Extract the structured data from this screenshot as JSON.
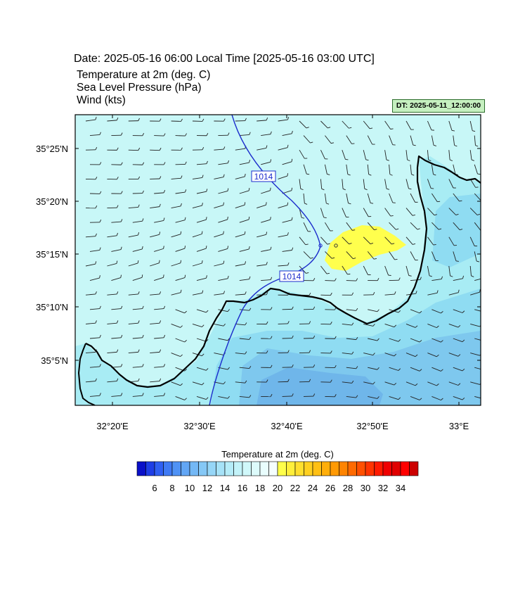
{
  "header": {
    "date_line": "Date: 2025-05-16  06:00 Local Time [2025-05-16  03:00 UTC]",
    "variables": [
      "Temperature at 2m   (deg. C)",
      "Sea Level Pressure   (hPa)",
      "Wind   (kts)"
    ],
    "dt_label": "DT: 2025-05-11_12:00:00"
  },
  "map": {
    "lat_labels": [
      "35°25'N",
      "35°20'N",
      "35°15'N",
      "35°10'N",
      "35°5'N"
    ],
    "lon_labels": [
      "32°20'E",
      "32°30'E",
      "32°40'E",
      "32°50'E",
      "33°E"
    ],
    "isobar_labels": [
      "1014",
      "1014"
    ],
    "colors": {
      "sea": "#c8f7f7",
      "land_light": "#a8ecf4",
      "land_mid": "#8fdcf2",
      "land_dark": "#7ec8ee",
      "land_deep": "#6fb6ea",
      "warm": "#ffff4d",
      "isobar": "#1c2ccc",
      "coast": "#000000"
    }
  },
  "colorbar": {
    "title": "Temperature at 2m  (deg. C)",
    "tick_labels": [
      "6",
      "8",
      "10",
      "12",
      "14",
      "16",
      "18",
      "20",
      "22",
      "24",
      "26",
      "28",
      "30",
      "32",
      "34"
    ],
    "colors": [
      "#0a10c8",
      "#1e3ee6",
      "#2f5ff2",
      "#3f7af4",
      "#4f92f5",
      "#62a6f5",
      "#74b8f5",
      "#85c8f6",
      "#96d6f7",
      "#a6e2f7",
      "#b5ecf8",
      "#c3f3f9",
      "#d0f8fa",
      "#ddfbfb",
      "#e9fdfd",
      "#f5fefe",
      "#ffff4a",
      "#ffef3a",
      "#ffdf2e",
      "#ffd020",
      "#ffc014",
      "#ffae0a",
      "#ff9a04",
      "#ff8400",
      "#ff6a00",
      "#ff5000",
      "#ff3400",
      "#ff1a00",
      "#f00000",
      "#e00000",
      "#ff0000",
      "#cc0000"
    ]
  }
}
